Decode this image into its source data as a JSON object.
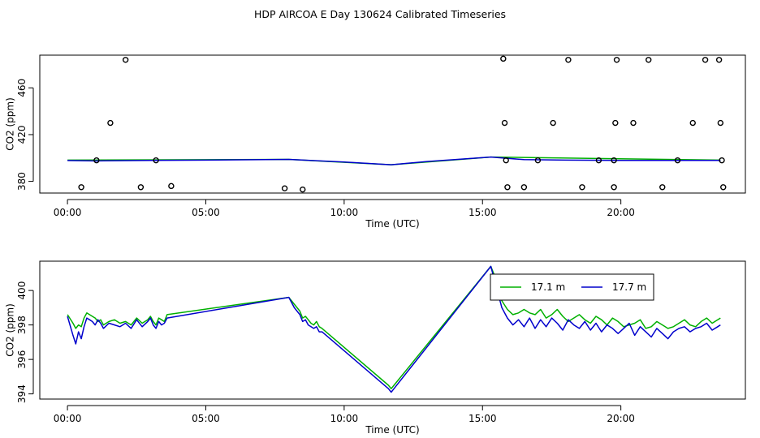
{
  "title": "HDP AIRCOA E  Day 130624  Calibrated Timeseries",
  "chart_data": [
    {
      "type": "scatter",
      "xlabel": "Time (UTC)",
      "ylabel": "CO2 (ppm)",
      "xlim": [
        -1.0,
        24.5
      ],
      "ylim": [
        370,
        488
      ],
      "x_ticks": [
        0,
        5,
        10,
        15,
        20
      ],
      "x_tick_labels": [
        "00:00",
        "05:00",
        "10:00",
        "15:00",
        "20:00"
      ],
      "y_ticks": [
        380,
        420,
        460
      ],
      "y_tick_labels": [
        "380",
        "420",
        "460"
      ],
      "grid": false,
      "points": [
        [
          0.5,
          375
        ],
        [
          1.05,
          398
        ],
        [
          1.55,
          430
        ],
        [
          2.1,
          484
        ],
        [
          2.65,
          375
        ],
        [
          3.2,
          398
        ],
        [
          3.75,
          376
        ],
        [
          7.85,
          374
        ],
        [
          8.5,
          373
        ],
        [
          15.75,
          485
        ],
        [
          15.8,
          430
        ],
        [
          15.85,
          398
        ],
        [
          15.9,
          375
        ],
        [
          16.5,
          375
        ],
        [
          17.0,
          398
        ],
        [
          17.55,
          430
        ],
        [
          18.1,
          484
        ],
        [
          18.6,
          375
        ],
        [
          19.2,
          398
        ],
        [
          19.75,
          375
        ],
        [
          19.75,
          398
        ],
        [
          19.8,
          430
        ],
        [
          19.85,
          484
        ],
        [
          20.45,
          430
        ],
        [
          21.0,
          484
        ],
        [
          21.5,
          375
        ],
        [
          22.05,
          398
        ],
        [
          22.6,
          430
        ],
        [
          23.05,
          484
        ],
        [
          23.55,
          484
        ],
        [
          23.6,
          430
        ],
        [
          23.65,
          398
        ],
        [
          23.7,
          375
        ]
      ],
      "series": [
        {
          "color": "#00b000",
          "x": [
            0,
            8.0,
            11.7,
            15.3,
            23.6
          ],
          "y": [
            398.2,
            398.8,
            394.2,
            400.8,
            398.2
          ]
        },
        {
          "color": "#0000cc",
          "x": [
            0,
            1.0,
            3.0,
            5.0,
            8.0,
            10.0,
            11.7,
            13.0,
            15.3,
            16.5,
            18.0,
            20.0,
            22.0,
            23.6
          ],
          "y": [
            397.8,
            397.5,
            398.0,
            398.2,
            398.8,
            396.5,
            394.2,
            397.0,
            400.8,
            398.6,
            398.2,
            398.0,
            397.9,
            398.0
          ]
        }
      ]
    },
    {
      "type": "line",
      "xlabel": "Time (UTC)",
      "ylabel": "CO2 (ppm)",
      "xlim": [
        -1.0,
        24.5
      ],
      "ylim": [
        393.7,
        401.7
      ],
      "x_ticks": [
        0,
        5,
        10,
        15,
        20
      ],
      "x_tick_labels": [
        "00:00",
        "05:00",
        "10:00",
        "15:00",
        "20:00"
      ],
      "y_ticks": [
        394,
        396,
        398,
        400
      ],
      "y_tick_labels": [
        "394",
        "396",
        "398",
        "400"
      ],
      "grid": false,
      "legend": {
        "position": "top-right",
        "entries": [
          {
            "name": "17.1 m",
            "color": "#00b000"
          },
          {
            "name": "17.7 m",
            "color": "#0000cc"
          }
        ]
      },
      "series": [
        {
          "name": "17.1 m",
          "color": "#00b000",
          "x": [
            0.0,
            0.2,
            0.3,
            0.4,
            0.5,
            0.6,
            0.7,
            0.8,
            0.9,
            1.0,
            1.1,
            1.2,
            1.3,
            1.5,
            1.7,
            1.9,
            2.1,
            2.3,
            2.5,
            2.7,
            2.9,
            3.0,
            3.1,
            3.2,
            3.3,
            3.4,
            3.5,
            3.6,
            8.0,
            8.2,
            8.4,
            8.5,
            8.6,
            8.7,
            8.8,
            8.9,
            9.0,
            9.1,
            9.2,
            11.6,
            11.7,
            11.8,
            15.3,
            15.5,
            15.7,
            15.9,
            16.1,
            16.3,
            16.5,
            16.7,
            16.9,
            17.1,
            17.3,
            17.5,
            17.7,
            17.9,
            18.1,
            18.3,
            18.5,
            18.7,
            18.9,
            19.1,
            19.3,
            19.5,
            19.7,
            19.9,
            20.1,
            20.3,
            20.5,
            20.7,
            20.9,
            21.1,
            21.3,
            21.5,
            21.7,
            21.9,
            22.1,
            22.3,
            22.5,
            22.7,
            22.9,
            23.1,
            23.3,
            23.5,
            23.6
          ],
          "y": [
            398.6,
            398.1,
            397.8,
            398.0,
            397.9,
            398.4,
            398.7,
            398.6,
            398.5,
            398.4,
            398.2,
            398.3,
            398.0,
            398.2,
            398.3,
            398.1,
            398.2,
            398.0,
            398.4,
            398.1,
            398.3,
            398.5,
            398.2,
            398.0,
            398.4,
            398.3,
            398.2,
            398.6,
            399.6,
            399.2,
            398.8,
            398.4,
            398.5,
            398.3,
            398.1,
            398.0,
            398.2,
            397.9,
            397.8,
            394.5,
            394.3,
            394.5,
            401.4,
            400.6,
            399.4,
            398.9,
            398.6,
            398.7,
            398.9,
            398.7,
            398.6,
            398.9,
            398.4,
            398.6,
            398.9,
            398.5,
            398.2,
            398.4,
            398.6,
            398.3,
            398.1,
            398.5,
            398.3,
            398.0,
            398.4,
            398.2,
            397.9,
            398.0,
            398.1,
            398.3,
            397.8,
            397.9,
            398.2,
            398.0,
            397.8,
            397.9,
            398.1,
            398.3,
            398.0,
            397.9,
            398.2,
            398.4,
            398.1,
            398.3,
            398.4
          ]
        },
        {
          "name": "17.7 m",
          "color": "#0000cc",
          "x": [
            0.0,
            0.2,
            0.3,
            0.4,
            0.5,
            0.6,
            0.7,
            0.8,
            0.9,
            1.0,
            1.1,
            1.2,
            1.3,
            1.5,
            1.7,
            1.9,
            2.1,
            2.3,
            2.5,
            2.7,
            2.9,
            3.0,
            3.1,
            3.2,
            3.3,
            3.4,
            3.5,
            3.6,
            8.0,
            8.2,
            8.4,
            8.5,
            8.6,
            8.7,
            8.8,
            8.9,
            9.0,
            9.1,
            9.2,
            11.6,
            11.7,
            11.8,
            15.3,
            15.5,
            15.7,
            15.9,
            16.1,
            16.3,
            16.5,
            16.7,
            16.9,
            17.1,
            17.3,
            17.5,
            17.7,
            17.9,
            18.1,
            18.3,
            18.5,
            18.7,
            18.9,
            19.1,
            19.3,
            19.5,
            19.7,
            19.9,
            20.1,
            20.3,
            20.5,
            20.7,
            20.9,
            21.1,
            21.3,
            21.5,
            21.7,
            21.9,
            22.1,
            22.3,
            22.5,
            22.7,
            22.9,
            23.1,
            23.3,
            23.5,
            23.6
          ],
          "y": [
            398.5,
            397.4,
            396.9,
            397.6,
            397.2,
            397.9,
            398.4,
            398.3,
            398.2,
            398.0,
            398.3,
            398.1,
            397.8,
            398.1,
            398.0,
            397.9,
            398.1,
            397.8,
            398.3,
            397.9,
            398.2,
            398.4,
            398.0,
            397.8,
            398.2,
            398.0,
            398.1,
            398.4,
            399.6,
            399.0,
            398.6,
            398.2,
            398.3,
            398.0,
            397.9,
            397.8,
            397.9,
            397.6,
            397.6,
            394.3,
            394.1,
            394.3,
            401.4,
            400.2,
            399.0,
            398.4,
            398.0,
            398.3,
            397.9,
            398.4,
            397.8,
            398.3,
            397.9,
            398.4,
            398.1,
            397.7,
            398.3,
            398.0,
            397.8,
            398.2,
            397.7,
            398.1,
            397.6,
            398.0,
            397.8,
            397.5,
            397.8,
            398.1,
            397.4,
            397.9,
            397.6,
            397.3,
            397.8,
            397.5,
            397.2,
            397.6,
            397.8,
            397.9,
            397.6,
            397.8,
            397.9,
            398.1,
            397.7,
            397.9,
            398.0
          ]
        }
      ]
    }
  ]
}
